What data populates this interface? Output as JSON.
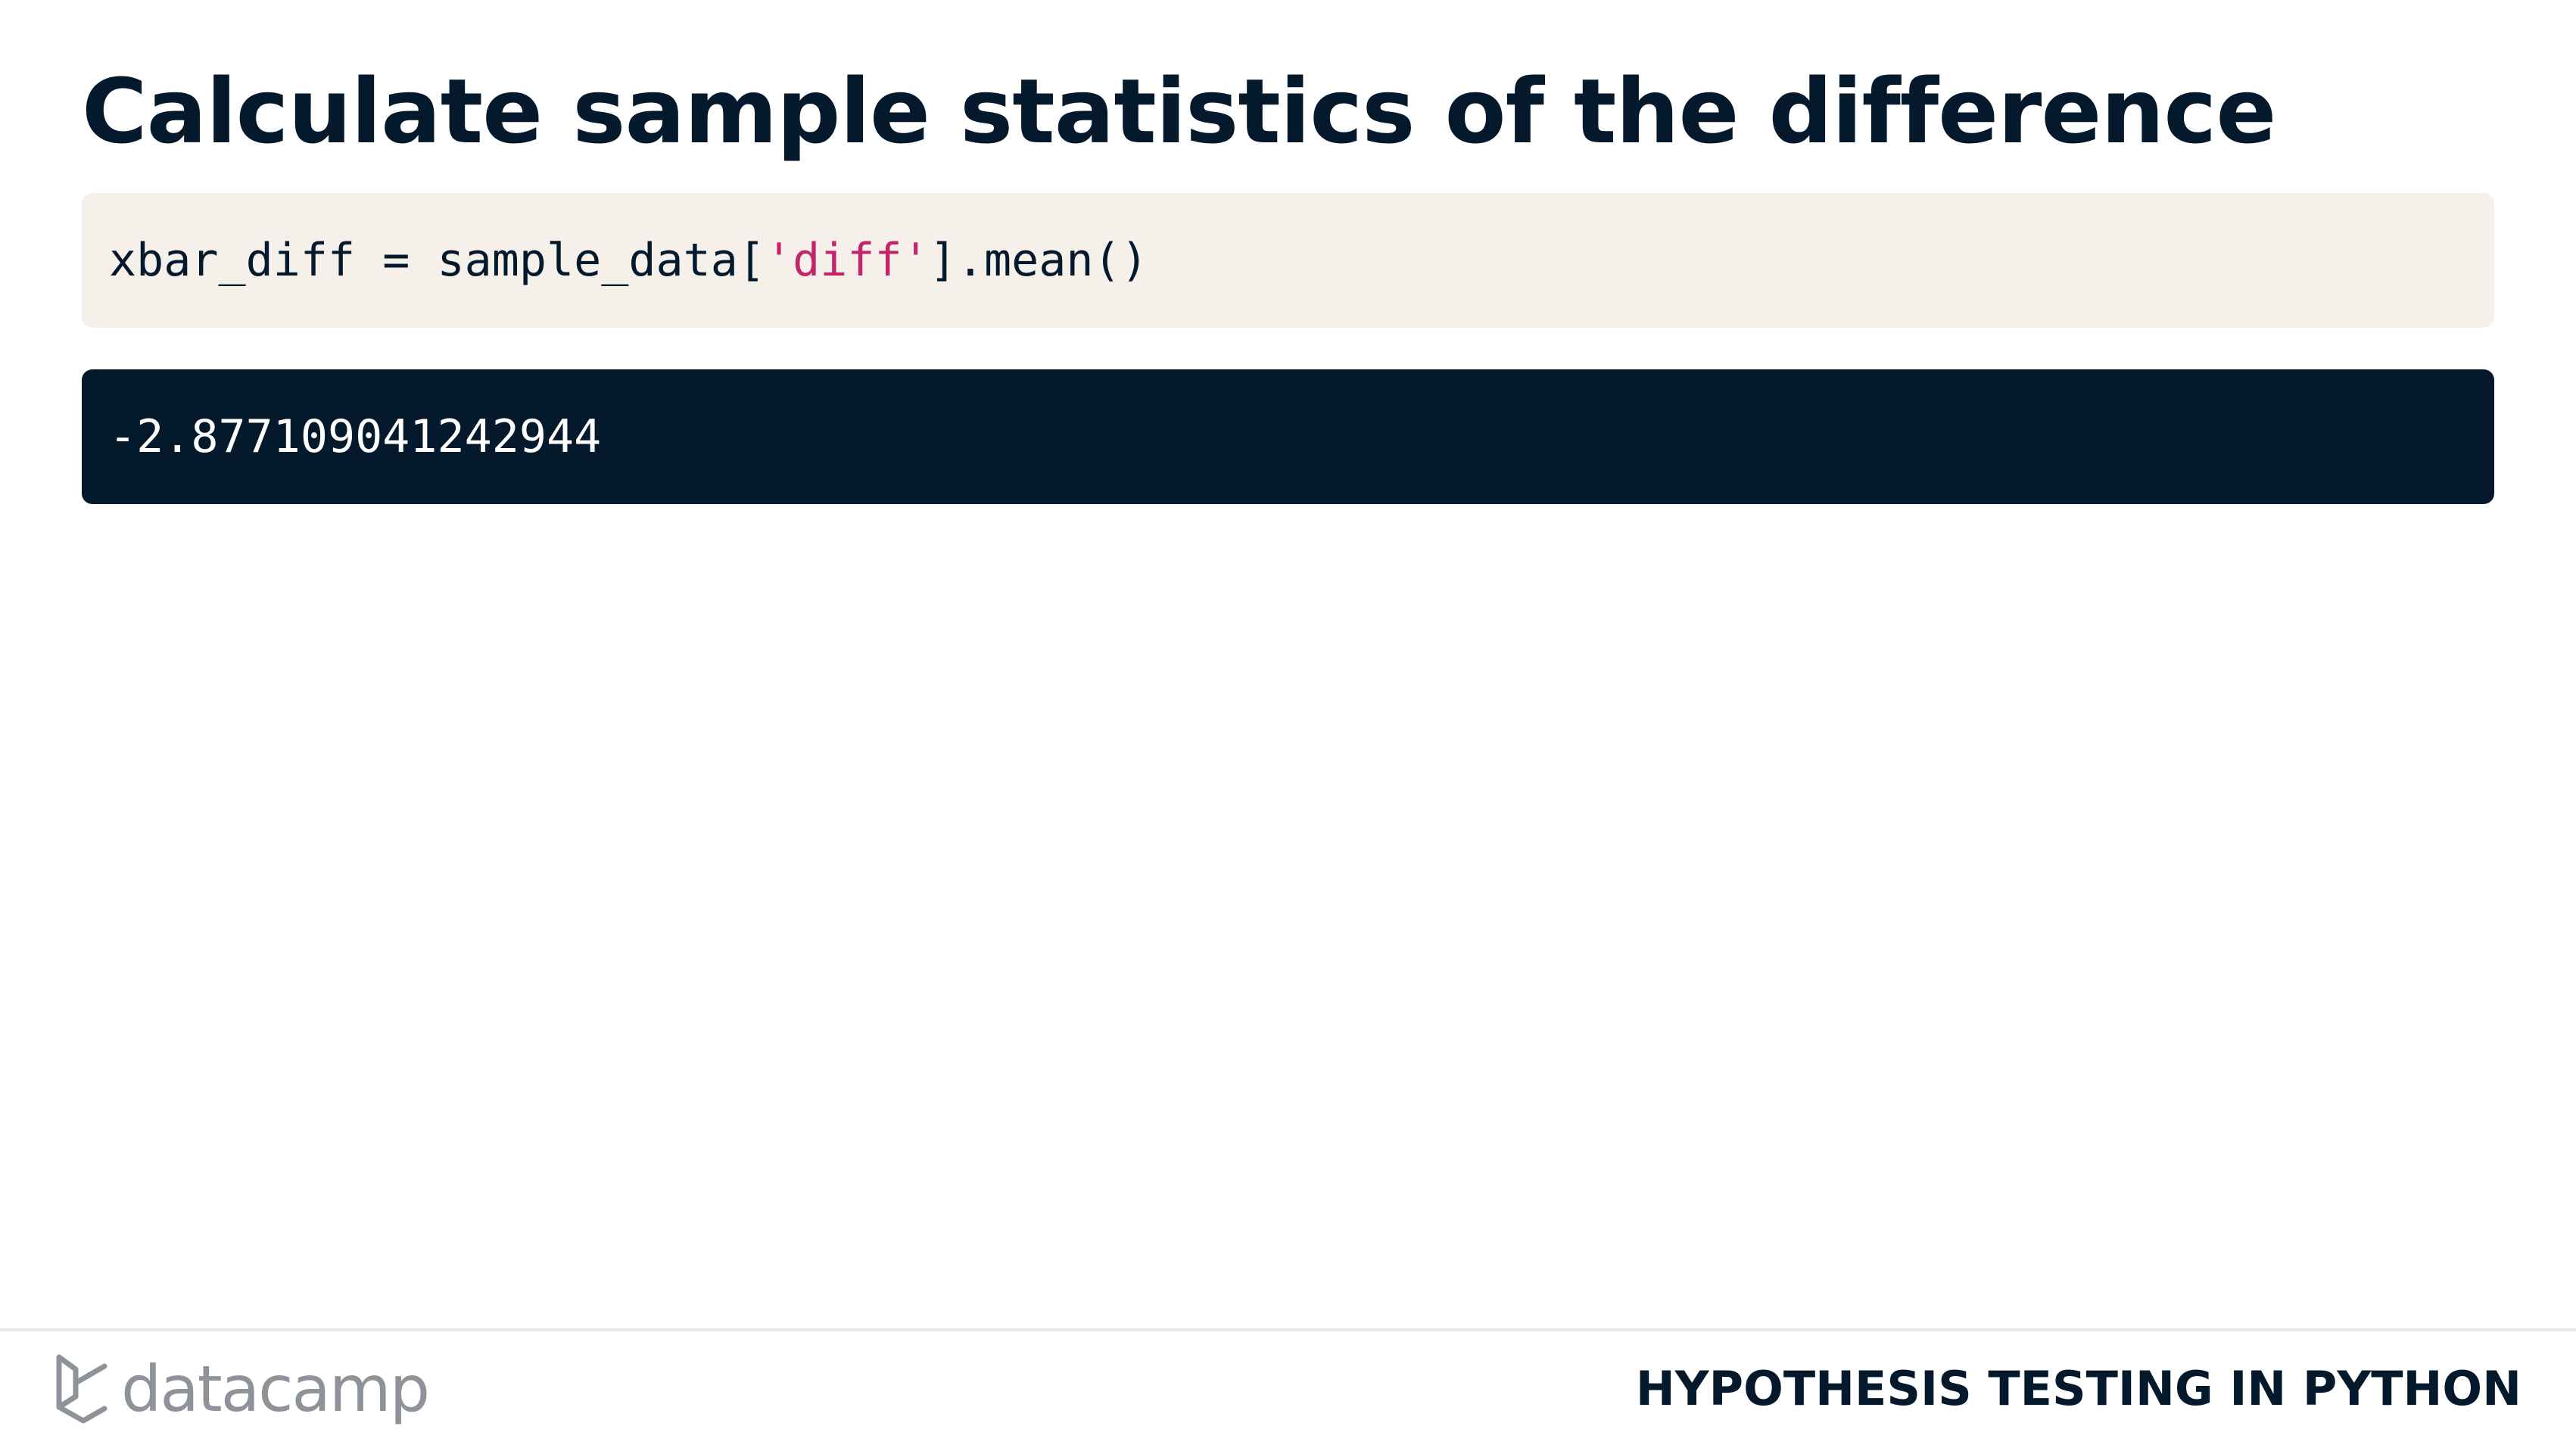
{
  "slide": {
    "title": "Calculate sample statistics of the difference"
  },
  "code": {
    "prefix": "xbar_diff = sample_data[",
    "string_literal": "'diff'",
    "suffix": "].mean()"
  },
  "output": {
    "value": "-2.877109041242944"
  },
  "footer": {
    "logo_text": "datacamp",
    "logo_icon": "datacamp-logo-icon",
    "course_name": "HYPOTHESIS TESTING IN PYTHON"
  },
  "colors": {
    "title": "#05192d",
    "code_background": "#f5f1ea",
    "string_literal": "#c3256b",
    "output_background": "#05192d",
    "logo": "#8e939a"
  }
}
